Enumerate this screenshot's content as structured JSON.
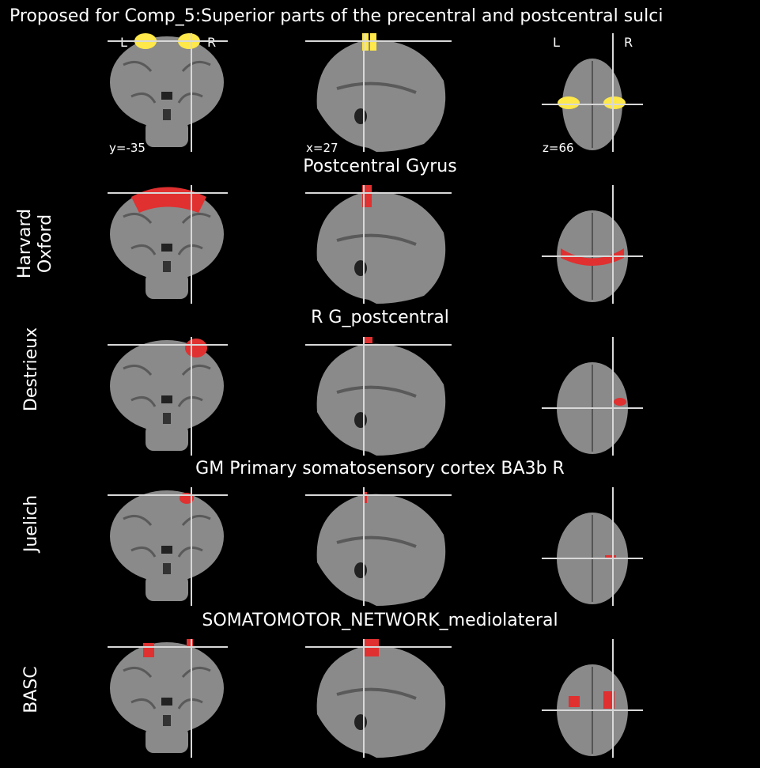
{
  "figure": {
    "title": "Proposed for Comp_5:Superior parts of the precentral and postcentral sulci"
  },
  "cut_coords": {
    "y": "y=-35",
    "x": "x=27",
    "z": "z=66"
  },
  "orientation": {
    "left": "L",
    "right": "R"
  },
  "rows": [
    {
      "atlas": "",
      "region": ""
    },
    {
      "atlas": "Harvard\nOxford",
      "region": "Postcentral Gyrus"
    },
    {
      "atlas": "Destrieux",
      "region": "R G_postcentral"
    },
    {
      "atlas": "Juelich",
      "region": "GM Primary somatosensory cortex BA3b R"
    },
    {
      "atlas": "BASC",
      "region": "SOMATOMOTOR_NETWORK_mediolateral"
    }
  ],
  "colors": {
    "background": "#000000",
    "brain_gray": "#8a8a8a",
    "overlay_red": "#e03030",
    "heat_yellow": "#ffe84a",
    "crosshair": "#d8d8d8"
  }
}
